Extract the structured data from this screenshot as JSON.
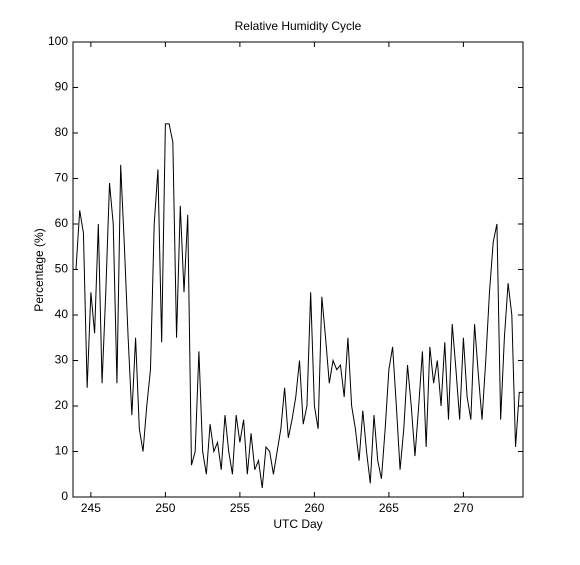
{
  "chart_data": {
    "type": "line",
    "title": "Relative Humidity Cycle",
    "x_label": "UTC Day",
    "y_label": "Percentage (%)",
    "x": [
      244,
      244.25,
      244.5,
      244.75,
      245,
      245.25,
      245.5,
      245.75,
      246,
      246.25,
      246.5,
      246.75,
      247,
      247.25,
      247.5,
      247.75,
      248,
      248.25,
      248.5,
      248.75,
      249,
      249.25,
      249.5,
      249.75,
      250,
      250.25,
      250.5,
      250.75,
      251,
      251.25,
      251.5,
      251.75,
      252,
      252.25,
      252.5,
      252.75,
      253,
      253.25,
      253.5,
      253.75,
      254,
      254.25,
      254.5,
      254.75,
      255,
      255.25,
      255.5,
      255.75,
      256,
      256.25,
      256.5,
      256.75,
      257,
      257.25,
      257.5,
      257.75,
      258,
      258.25,
      258.5,
      258.75,
      259,
      259.25,
      259.5,
      259.75,
      260,
      260.25,
      260.5,
      260.75,
      261,
      261.25,
      261.5,
      261.75,
      262,
      262.25,
      262.5,
      262.75,
      263,
      263.25,
      263.5,
      263.75,
      264,
      264.25,
      264.5,
      264.75,
      265,
      265.25,
      265.5,
      265.75,
      266,
      266.25,
      266.5,
      266.75,
      267,
      267.25,
      267.5,
      267.75,
      268,
      268.25,
      268.5,
      268.75,
      269,
      269.25,
      269.5,
      269.75,
      270,
      270.25,
      270.5,
      270.75,
      271,
      271.25,
      271.5,
      271.75,
      272,
      272.25,
      272.5,
      272.75,
      273,
      273.25,
      273.5,
      273.75,
      274
    ],
    "series": [
      {
        "name": "Relative Humidity",
        "color": "#000000",
        "values": [
          50,
          63,
          58,
          24,
          45,
          36,
          60,
          25,
          45,
          69,
          60,
          25,
          73,
          55,
          35,
          18,
          35,
          15,
          10,
          20,
          28,
          60,
          72,
          34,
          82,
          82,
          78,
          35,
          64,
          45,
          62,
          7,
          10,
          32,
          10,
          5,
          16,
          10,
          12,
          6,
          18,
          10,
          5,
          18,
          12,
          17,
          5,
          14,
          6,
          8,
          2,
          11,
          10,
          5,
          10,
          15,
          24,
          13,
          17,
          22,
          30,
          16,
          20,
          45,
          20,
          15,
          44,
          35,
          25,
          30,
          28,
          29,
          22,
          35,
          20,
          15,
          8,
          19,
          10,
          3,
          18,
          8,
          4,
          15,
          28,
          33,
          20,
          6,
          15,
          29,
          20,
          9,
          20,
          32,
          11,
          33,
          25,
          30,
          20,
          34,
          17,
          38,
          28,
          17,
          35,
          22,
          17,
          38,
          27,
          17,
          30,
          45,
          56,
          60,
          17,
          35,
          47,
          40,
          11,
          23,
          23
        ]
      }
    ],
    "xlim": [
      243.8,
      274
    ],
    "xticks": [
      245,
      250,
      255,
      260,
      265,
      270
    ],
    "ylim": [
      0,
      100
    ],
    "yticks": [
      0,
      10,
      20,
      30,
      40,
      50,
      60,
      70,
      80,
      90,
      100
    ]
  }
}
